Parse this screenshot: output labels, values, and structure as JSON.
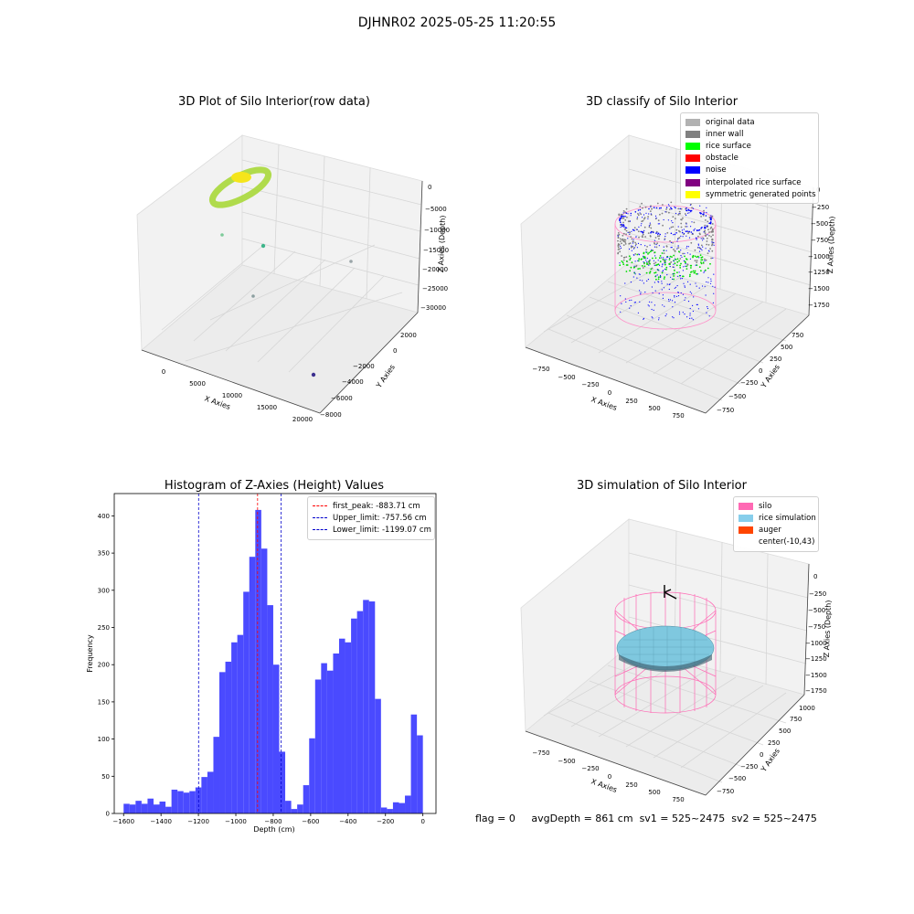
{
  "figure": {
    "suptitle": "DJHNR02 2025-05-25 11:20:55",
    "footer": {
      "flag": "flag = 0",
      "avg_depth": "avgDepth = 861 cm",
      "sv1": "sv1 = 525~2475",
      "sv2": "sv2 = 525~2475"
    }
  },
  "panel1": {
    "title": "3D Plot of Silo Interior(row data)",
    "x_label": "X Axies",
    "y_label": "Y Axies",
    "z_label": "Z Axies (Depth)",
    "x_ticks": [
      "0",
      "5000",
      "10000",
      "15000",
      "20000"
    ],
    "y_ticks": [
      "2000",
      "0",
      "−2000",
      "−4000",
      "−6000",
      "−8000"
    ],
    "z_ticks": [
      "0",
      "−5000",
      "−10000",
      "−15000",
      "−20000",
      "−25000",
      "−30000"
    ],
    "ring_color": "#a8d83a",
    "cluster_color": "#f5e51b",
    "outlier_colors": [
      "#7ecb9a",
      "#3db58a",
      "#9aa5a8",
      "#8c9fa0",
      "#3b2f8f"
    ]
  },
  "panel2": {
    "title": "3D classify of Silo Interior",
    "x_label": "X Axies",
    "y_label": "Y Axies",
    "z_label": "Z Axies (Depth)",
    "x_ticks": [
      "−750",
      "−500",
      "−250",
      "0",
      "250",
      "500",
      "750"
    ],
    "y_ticks": [
      "750",
      "500",
      "250",
      "0",
      "−250",
      "−500",
      "−750"
    ],
    "z_ticks": [
      "0",
      "−250",
      "−500",
      "−750",
      "−1000",
      "−1250",
      "−1500",
      "−1750"
    ],
    "legend": [
      {
        "label": "original data",
        "color": "#b2b2b2"
      },
      {
        "label": "inner wall",
        "color": "#808080"
      },
      {
        "label": "rice surface",
        "color": "#00ff00"
      },
      {
        "label": "obstacle",
        "color": "#ff0000"
      },
      {
        "label": "noise",
        "color": "#0000ff"
      },
      {
        "label": "interpolated rice surface",
        "color": "#800080"
      },
      {
        "label": "symmetric generated points",
        "color": "#ffff00"
      }
    ]
  },
  "panel3": {
    "title": "Histogram of Z-Axies (Height) Values"
  },
  "panel4": {
    "title": "3D simulation of Silo Interior",
    "x_label": "X Axies",
    "y_label": "Y Axies",
    "z_label": "Z Axies (Depth)",
    "x_ticks": [
      "−750",
      "−500",
      "−250",
      "0",
      "250",
      "500",
      "750"
    ],
    "y_ticks": [
      "1000",
      "750",
      "500",
      "250",
      "0",
      "−250",
      "−500",
      "−750"
    ],
    "z_ticks": [
      "0",
      "−250",
      "−500",
      "−750",
      "−1000",
      "−1250",
      "−1500",
      "−1750"
    ],
    "legend": [
      {
        "label": "silo",
        "color": "#ff69b4"
      },
      {
        "label": "rice simulation",
        "color": "#87ceeb"
      },
      {
        "label": "auger",
        "color": "#ff4500"
      },
      {
        "label": "center(-10,43)",
        "color": ""
      }
    ]
  },
  "chart_data": {
    "type": "bar",
    "title": "Histogram of Z-Axies (Height) Values",
    "xlabel": "Depth (cm)",
    "ylabel": "Frequency",
    "xlim": [
      -1650,
      70
    ],
    "ylim": [
      0,
      430
    ],
    "x_ticks": [
      -1600,
      -1400,
      -1200,
      -1000,
      -800,
      -600,
      -400,
      -200,
      0
    ],
    "x_tick_labels": [
      "−1600",
      "−1400",
      "−1200",
      "−1000",
      "−800",
      "−600",
      "−400",
      "−200",
      "0"
    ],
    "y_ticks": [
      0,
      50,
      100,
      150,
      200,
      250,
      300,
      350,
      400
    ],
    "bar_color": "#4a4aff",
    "bin_start": -1600,
    "bin_width": 32,
    "values": [
      13,
      12,
      17,
      13,
      20,
      12,
      16,
      9,
      32,
      30,
      28,
      30,
      35,
      49,
      56,
      103,
      190,
      204,
      230,
      240,
      298,
      345,
      408,
      356,
      280,
      200,
      83,
      17,
      6,
      12,
      38,
      101,
      180,
      202,
      192,
      215,
      235,
      230,
      262,
      272,
      287,
      285,
      154,
      8,
      6,
      15,
      14,
      24,
      133,
      105
    ],
    "lines": [
      {
        "label": "first_peak: -883.71 cm",
        "x": -883.71,
        "color": "#ff0000"
      },
      {
        "label": "Upper_limit: -757.56 cm",
        "x": -757.56,
        "color": "#0000cc"
      },
      {
        "label": "Lower_limit: -1199.07 cm",
        "x": -1199.07,
        "color": "#0000cc"
      }
    ]
  }
}
